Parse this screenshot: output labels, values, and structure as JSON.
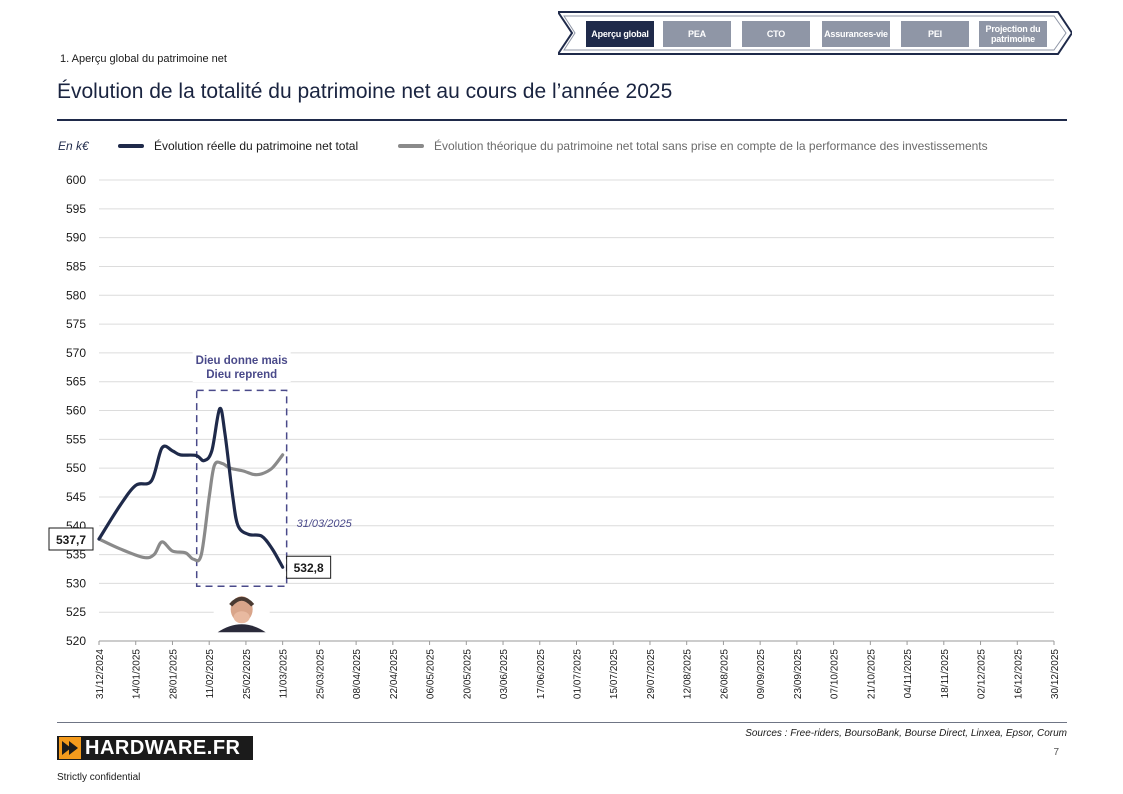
{
  "nav": {
    "items": [
      {
        "label": "Aperçu global",
        "active": true
      },
      {
        "label": "PEA",
        "active": false
      },
      {
        "label": "CTO",
        "active": false
      },
      {
        "label": "Assurances-vie",
        "active": false
      },
      {
        "label": "PEI",
        "active": false
      },
      {
        "label": "Projection du patrimoine",
        "active": false
      }
    ]
  },
  "section_label": "1. Aperçu global du patrimoine net",
  "page_title": "Évolution de la totalité du patrimoine net au cours de l’année 2025",
  "unit_label": "En k€",
  "legend": [
    {
      "label": "Évolution réelle du patrimoine net total",
      "color": "#1f2a4a",
      "text_color": "#1a1a1a"
    },
    {
      "label": "Évolution théorique du patrimoine net total sans prise en compte de la performance des investissements",
      "color": "#8a8a8a",
      "text_color": "#6b6b6b"
    }
  ],
  "chart_data": {
    "type": "line",
    "ylim": [
      520,
      600
    ],
    "yticks": [
      520,
      525,
      530,
      535,
      540,
      545,
      550,
      555,
      560,
      565,
      570,
      575,
      580,
      585,
      590,
      595,
      600
    ],
    "x_tick_labels": [
      "31/12/2024",
      "14/01/2025",
      "28/01/2025",
      "11/02/2025",
      "25/02/2025",
      "11/03/2025",
      "25/03/2025",
      "08/04/2025",
      "22/04/2025",
      "06/05/2025",
      "20/05/2025",
      "03/06/2025",
      "17/06/2025",
      "01/07/2025",
      "15/07/2025",
      "29/07/2025",
      "12/08/2025",
      "26/08/2025",
      "09/09/2025",
      "23/09/2025",
      "07/10/2025",
      "21/10/2025",
      "04/11/2025",
      "18/11/2025",
      "02/12/2025",
      "16/12/2025",
      "30/12/2025"
    ],
    "grid": true,
    "series": [
      {
        "name": "Évolution réelle du patrimoine net total",
        "color": "#1f2a4a",
        "points": [
          {
            "day": 0,
            "value": 537.7
          },
          {
            "day": 8,
            "value": 543.5
          },
          {
            "day": 14,
            "value": 547.0
          },
          {
            "day": 20,
            "value": 547.8
          },
          {
            "day": 24,
            "value": 553.5
          },
          {
            "day": 28,
            "value": 553.0
          },
          {
            "day": 31,
            "value": 552.3
          },
          {
            "day": 37,
            "value": 552.2
          },
          {
            "day": 40,
            "value": 551.3
          },
          {
            "day": 43,
            "value": 553.0
          },
          {
            "day": 46,
            "value": 560.3
          },
          {
            "day": 48,
            "value": 556.0
          },
          {
            "day": 51,
            "value": 545.0
          },
          {
            "day": 53,
            "value": 540.0
          },
          {
            "day": 57,
            "value": 538.5
          },
          {
            "day": 62,
            "value": 538.2
          },
          {
            "day": 66,
            "value": 536.0
          },
          {
            "day": 70,
            "value": 532.8
          }
        ]
      },
      {
        "name": "Évolution théorique du patrimoine net total sans prise en compte de la performance des investissements",
        "color": "#8a8a8a",
        "points": [
          {
            "day": 0,
            "value": 537.7
          },
          {
            "day": 8,
            "value": 536.0
          },
          {
            "day": 17,
            "value": 534.5
          },
          {
            "day": 21,
            "value": 535.0
          },
          {
            "day": 24,
            "value": 537.2
          },
          {
            "day": 28,
            "value": 535.6
          },
          {
            "day": 33,
            "value": 535.3
          },
          {
            "day": 36,
            "value": 534.2
          },
          {
            "day": 39,
            "value": 535.0
          },
          {
            "day": 42,
            "value": 545.0
          },
          {
            "day": 44,
            "value": 550.5
          },
          {
            "day": 47,
            "value": 550.8
          },
          {
            "day": 50,
            "value": 550.0
          },
          {
            "day": 55,
            "value": 549.5
          },
          {
            "day": 59,
            "value": 548.9
          },
          {
            "day": 62,
            "value": 549.0
          },
          {
            "day": 66,
            "value": 550.0
          },
          {
            "day": 70,
            "value": 552.3
          }
        ]
      }
    ],
    "annotations": {
      "start_value_label": "537,7",
      "end_value_label": "532,8",
      "end_date_label": "31/03/2025",
      "box_title_line1": "Dieu donne mais",
      "box_title_line2": "Dieu reprend",
      "box_day_range": [
        38,
        70
      ],
      "box_value_range": [
        529.5,
        563.5
      ]
    }
  },
  "footer": {
    "sources": "Sources : Free-riders, BoursoBank, Bourse Direct, Linxea, Epsor, Corum",
    "page_number": "7",
    "confidential": "Strictly confidential",
    "logo_text": "HARDWARE.FR",
    "logo_color": "#f39a1c"
  }
}
